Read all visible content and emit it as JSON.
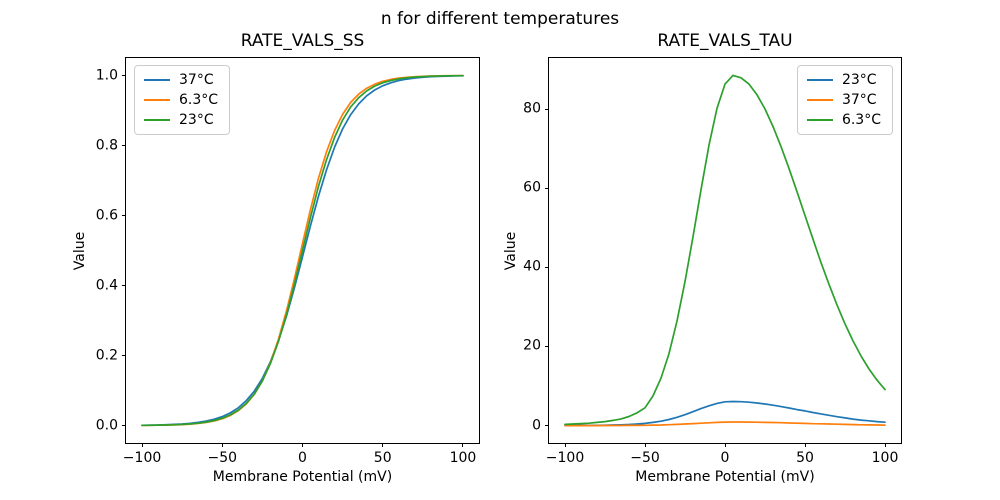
{
  "figure": {
    "suptitle": "n for different temperatures",
    "background": "#ffffff"
  },
  "palette": {
    "blue": "#1f77b4",
    "orange": "#ff7f0e",
    "green": "#2ca02c",
    "axis": "#000000",
    "legend_border": "#cccccc"
  },
  "chart_data": [
    {
      "type": "line",
      "title": "RATE_VALS_SS",
      "xlabel": "Membrane Potential (mV)",
      "ylabel": "Value",
      "xlim": [
        -110,
        110
      ],
      "ylim": [
        -0.05,
        1.05
      ],
      "xticks": [
        -100,
        -50,
        0,
        50,
        100
      ],
      "xtick_labels": [
        "−100",
        "−50",
        "0",
        "50",
        "100"
      ],
      "yticks": [
        0,
        0.2,
        0.4,
        0.6,
        0.8,
        1.0
      ],
      "ytick_labels": [
        "0.0",
        "0.2",
        "0.4",
        "0.6",
        "0.8",
        "1.0"
      ],
      "grid": false,
      "legend_position": "upper-left",
      "x": [
        -100,
        -95,
        -90,
        -85,
        -80,
        -75,
        -70,
        -65,
        -60,
        -55,
        -50,
        -45,
        -40,
        -35,
        -30,
        -25,
        -20,
        -15,
        -10,
        -5,
        0,
        5,
        10,
        15,
        20,
        25,
        30,
        35,
        40,
        45,
        50,
        55,
        60,
        65,
        70,
        75,
        80,
        85,
        90,
        95,
        100
      ],
      "series": [
        {
          "name": "37°C",
          "color": "#1f77b4",
          "values": [
            0.0007,
            0.0011,
            0.0015,
            0.0022,
            0.0031,
            0.0044,
            0.0062,
            0.0089,
            0.0126,
            0.018,
            0.0255,
            0.036,
            0.0507,
            0.071,
            0.0985,
            0.135,
            0.1824,
            0.2417,
            0.313,
            0.3944,
            0.4821,
            0.5709,
            0.6554,
            0.7311,
            0.7953,
            0.8474,
            0.8881,
            0.919,
            0.942,
            0.9587,
            0.9707,
            0.9792,
            0.9855,
            0.9898,
            0.9928,
            0.995,
            0.9965,
            0.9975,
            0.9983,
            0.9988,
            0.9991
          ]
        },
        {
          "name": "6.3°C",
          "color": "#ff7f0e",
          "values": [
            0.0004,
            0.0005,
            0.0008,
            0.0012,
            0.0018,
            0.0027,
            0.004,
            0.006,
            0.0088,
            0.0131,
            0.0195,
            0.0287,
            0.0423,
            0.0618,
            0.0895,
            0.1278,
            0.1794,
            0.2461,
            0.3274,
            0.4207,
            0.52,
            0.6178,
            0.7068,
            0.7825,
            0.8429,
            0.8889,
            0.9228,
            0.9469,
            0.9636,
            0.9752,
            0.9834,
            0.9888,
            0.9925,
            0.9949,
            0.9966,
            0.9977,
            0.9985,
            0.999,
            0.9993,
            0.9995,
            0.9997
          ]
        },
        {
          "name": "23°C",
          "color": "#2ca02c",
          "values": [
            0.0005,
            0.0007,
            0.001,
            0.0014,
            0.0021,
            0.0031,
            0.0046,
            0.0067,
            0.0098,
            0.0143,
            0.0209,
            0.0304,
            0.0441,
            0.0634,
            0.0904,
            0.1275,
            0.1769,
            0.2398,
            0.3167,
            0.405,
            0.5,
            0.595,
            0.6833,
            0.7602,
            0.8231,
            0.8725,
            0.9096,
            0.9366,
            0.9559,
            0.9696,
            0.9791,
            0.9857,
            0.9902,
            0.9933,
            0.9954,
            0.9969,
            0.9979,
            0.9986,
            0.999,
            0.9993,
            0.9995
          ]
        }
      ]
    },
    {
      "type": "line",
      "title": "RATE_VALS_TAU",
      "xlabel": "Membrane Potential (mV)",
      "ylabel": "Value",
      "xlim": [
        -110,
        110
      ],
      "ylim": [
        -4.4,
        92.9
      ],
      "xticks": [
        -100,
        -50,
        0,
        50,
        100
      ],
      "xtick_labels": [
        "−100",
        "−50",
        "0",
        "50",
        "100"
      ],
      "yticks": [
        0,
        20,
        40,
        60,
        80
      ],
      "ytick_labels": [
        "0",
        "20",
        "40",
        "60",
        "80"
      ],
      "grid": false,
      "legend_position": "upper-right",
      "x": [
        -100,
        -95,
        -90,
        -85,
        -80,
        -75,
        -70,
        -65,
        -60,
        -55,
        -50,
        -45,
        -40,
        -35,
        -30,
        -25,
        -20,
        -15,
        -10,
        -5,
        0,
        5,
        10,
        15,
        20,
        25,
        30,
        35,
        40,
        45,
        50,
        55,
        60,
        65,
        70,
        75,
        80,
        85,
        90,
        95,
        100
      ],
      "series": [
        {
          "name": "23°C",
          "color": "#1f77b4",
          "values": [
            0.03,
            0.04,
            0.05,
            0.06,
            0.08,
            0.1,
            0.15,
            0.2,
            0.28,
            0.4,
            0.55,
            0.8,
            1.1,
            1.55,
            2.1,
            2.75,
            3.5,
            4.3,
            5.0,
            5.6,
            6.0,
            6.1,
            6.05,
            5.9,
            5.7,
            5.45,
            5.15,
            4.8,
            4.45,
            4.05,
            3.7,
            3.3,
            2.95,
            2.6,
            2.25,
            1.95,
            1.65,
            1.4,
            1.2,
            1.0,
            0.85
          ]
        },
        {
          "name": "37°C",
          "color": "#ff7f0e",
          "values": [
            0.0,
            0.0,
            0.01,
            0.01,
            0.01,
            0.02,
            0.02,
            0.03,
            0.04,
            0.06,
            0.08,
            0.12,
            0.16,
            0.22,
            0.3,
            0.39,
            0.5,
            0.61,
            0.71,
            0.8,
            0.87,
            0.9,
            0.9,
            0.88,
            0.85,
            0.81,
            0.77,
            0.72,
            0.66,
            0.61,
            0.55,
            0.49,
            0.44,
            0.39,
            0.34,
            0.29,
            0.25,
            0.21,
            0.18,
            0.15,
            0.13
          ]
        },
        {
          "name": "6.3°C",
          "color": "#2ca02c",
          "values": [
            0.3,
            0.4,
            0.5,
            0.6,
            0.8,
            1.0,
            1.3,
            1.7,
            2.3,
            3.2,
            4.5,
            7.5,
            12.0,
            18.2,
            26.4,
            36.4,
            47.7,
            59.6,
            70.9,
            80.2,
            86.3,
            88.5,
            87.9,
            86.3,
            83.6,
            80.0,
            75.6,
            70.5,
            65.0,
            59.1,
            53.1,
            47.1,
            41.2,
            35.7,
            30.5,
            25.7,
            21.4,
            17.6,
            14.3,
            11.5,
            9.1
          ]
        }
      ]
    }
  ]
}
